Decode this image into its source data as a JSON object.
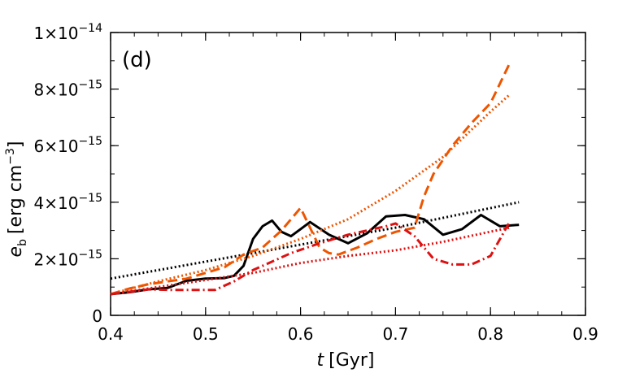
{
  "chart_data": {
    "type": "line",
    "panel_label": "(d)",
    "xlabel": "t [Gyr]",
    "xlabel_var": "t",
    "xlabel_unit": "[Gyr]",
    "ylabel": "e_b [erg cm^-3]",
    "ylabel_var": "e",
    "ylabel_sub": "b",
    "ylabel_unit_a": "[erg cm",
    "ylabel_unit_sup": "−3",
    "ylabel_unit_b": "]",
    "xlim": [
      0.4,
      0.9
    ],
    "ylim": [
      0,
      1e-14
    ],
    "x_ticks": [
      {
        "value": 0.4,
        "label": "0.4"
      },
      {
        "value": 0.5,
        "label": "0.5"
      },
      {
        "value": 0.6,
        "label": "0.6"
      },
      {
        "value": 0.7,
        "label": "0.7"
      },
      {
        "value": 0.8,
        "label": "0.8"
      },
      {
        "value": 0.9,
        "label": "0.9"
      }
    ],
    "y_ticks": [
      {
        "value": 0,
        "mantissa": "0",
        "exponent": ""
      },
      {
        "value": 2e-15,
        "mantissa": "2×10",
        "exponent": "−15"
      },
      {
        "value": 4e-15,
        "mantissa": "4×10",
        "exponent": "−15"
      },
      {
        "value": 6e-15,
        "mantissa": "6×10",
        "exponent": "−15"
      },
      {
        "value": 8e-15,
        "mantissa": "8×10",
        "exponent": "−15"
      },
      {
        "value": 1e-14,
        "mantissa": "1×10",
        "exponent": "−14"
      }
    ],
    "series": [
      {
        "name": "black-solid",
        "color": "#000000",
        "style": "solid",
        "x": [
          0.4,
          0.42,
          0.44,
          0.46,
          0.48,
          0.5,
          0.52,
          0.53,
          0.54,
          0.55,
          0.56,
          0.57,
          0.58,
          0.59,
          0.6,
          0.61,
          0.63,
          0.65,
          0.67,
          0.69,
          0.71,
          0.73,
          0.75,
          0.77,
          0.79,
          0.81,
          0.83
        ],
        "y": [
          7.5e-16,
          8.2e-16,
          9.2e-16,
          9.7e-16,
          1.22e-15,
          1.3e-15,
          1.32e-15,
          1.4e-15,
          1.75e-15,
          2.7e-15,
          3.15e-15,
          3.35e-15,
          2.95e-15,
          2.8e-15,
          3.05e-15,
          3.3e-15,
          2.85e-15,
          2.55e-15,
          2.9e-15,
          3.5e-15,
          3.55e-15,
          3.4e-15,
          2.85e-15,
          3.05e-15,
          3.55e-15,
          3.15e-15,
          3.2e-15
        ]
      },
      {
        "name": "black-dotted",
        "color": "#000000",
        "style": "dotted",
        "x": [
          0.4,
          0.5,
          0.6,
          0.7,
          0.83
        ],
        "y": [
          1.3e-15,
          1.9e-15,
          2.5e-15,
          3.1e-15,
          4e-15
        ]
      },
      {
        "name": "orange-dashed",
        "color": "#ee5500",
        "style": "dashed",
        "x": [
          0.4,
          0.42,
          0.44,
          0.46,
          0.48,
          0.5,
          0.52,
          0.54,
          0.56,
          0.58,
          0.6,
          0.61,
          0.62,
          0.63,
          0.64,
          0.66,
          0.68,
          0.7,
          0.72,
          0.73,
          0.74,
          0.76,
          0.78,
          0.8,
          0.82
        ],
        "y": [
          7.5e-16,
          9.5e-16,
          1.1e-15,
          1.2e-15,
          1.3e-15,
          1.5e-15,
          1.7e-15,
          2.15e-15,
          2.4e-15,
          3e-15,
          3.8e-15,
          3.1e-15,
          2.4e-15,
          2.2e-15,
          2.15e-15,
          2.4e-15,
          2.7e-15,
          2.95e-15,
          3.1e-15,
          4.2e-15,
          5e-15,
          6e-15,
          6.8e-15,
          7.5e-15,
          8.9e-15
        ]
      },
      {
        "name": "orange-dotted",
        "color": "#ee5500",
        "style": "dotted",
        "x": [
          0.4,
          0.45,
          0.5,
          0.55,
          0.6,
          0.65,
          0.7,
          0.75,
          0.8,
          0.82
        ],
        "y": [
          7.5e-16,
          1.2e-15,
          1.6e-15,
          2.1e-15,
          2.7e-15,
          3.4e-15,
          4.4e-15,
          5.6e-15,
          7.2e-15,
          7.8e-15
        ]
      },
      {
        "name": "red-dashdot",
        "color": "#dd1111",
        "style": "dashdot",
        "x": [
          0.4,
          0.44,
          0.46,
          0.48,
          0.51,
          0.53,
          0.55,
          0.57,
          0.59,
          0.62,
          0.65,
          0.67,
          0.69,
          0.7,
          0.72,
          0.74,
          0.76,
          0.78,
          0.8,
          0.82
        ],
        "y": [
          7.5e-16,
          9.2e-16,
          9e-16,
          9e-16,
          9e-16,
          1.2e-15,
          1.6e-15,
          1.9e-15,
          2.2e-15,
          2.55e-15,
          2.85e-15,
          3e-15,
          3.15e-15,
          3.25e-15,
          2.8e-15,
          2e-15,
          1.8e-15,
          1.8e-15,
          2.1e-15,
          3.3e-15
        ]
      },
      {
        "name": "red-dotted",
        "color": "#dd1111",
        "style": "dotted",
        "x": [
          0.4,
          0.45,
          0.5,
          0.55,
          0.6,
          0.65,
          0.7,
          0.75,
          0.82
        ],
        "y": [
          7.5e-16,
          1e-15,
          1.25e-15,
          1.5e-15,
          1.85e-15,
          2.1e-15,
          2.3e-15,
          2.6e-15,
          3.1e-15
        ]
      }
    ]
  }
}
